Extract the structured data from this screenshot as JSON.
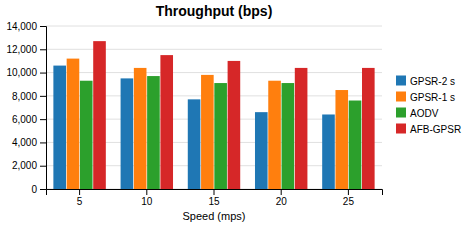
{
  "chart_data": {
    "type": "bar",
    "title": "Throughput (bps)",
    "xlabel": "Speed (mps)",
    "categories": [
      "5",
      "10",
      "15",
      "20",
      "25"
    ],
    "series": [
      {
        "name": "GPSR-2 s",
        "values": [
          10600,
          9500,
          7700,
          6600,
          6400
        ]
      },
      {
        "name": "GPSR-1 s",
        "values": [
          11200,
          10400,
          9800,
          9300,
          8500
        ]
      },
      {
        "name": "AODV",
        "values": [
          9300,
          9700,
          9100,
          9100,
          7600
        ]
      },
      {
        "name": "AFB-GPSR",
        "values": [
          12700,
          11500,
          11000,
          10400,
          10400
        ]
      }
    ],
    "ylim": [
      0,
      14000
    ],
    "yticks": [
      0,
      {
        "value": 2000,
        "label": "2,000"
      },
      {
        "value": 4000,
        "label": "4,000"
      },
      {
        "value": 6000,
        "label": "6,000"
      },
      {
        "value": 8000,
        "label": "8,000"
      },
      {
        "value": 10000,
        "label": "10,000"
      },
      {
        "value": 12000,
        "label": "12,000"
      },
      {
        "value": 14000,
        "label": "14,000"
      }
    ],
    "grid": true,
    "legend": "right"
  }
}
